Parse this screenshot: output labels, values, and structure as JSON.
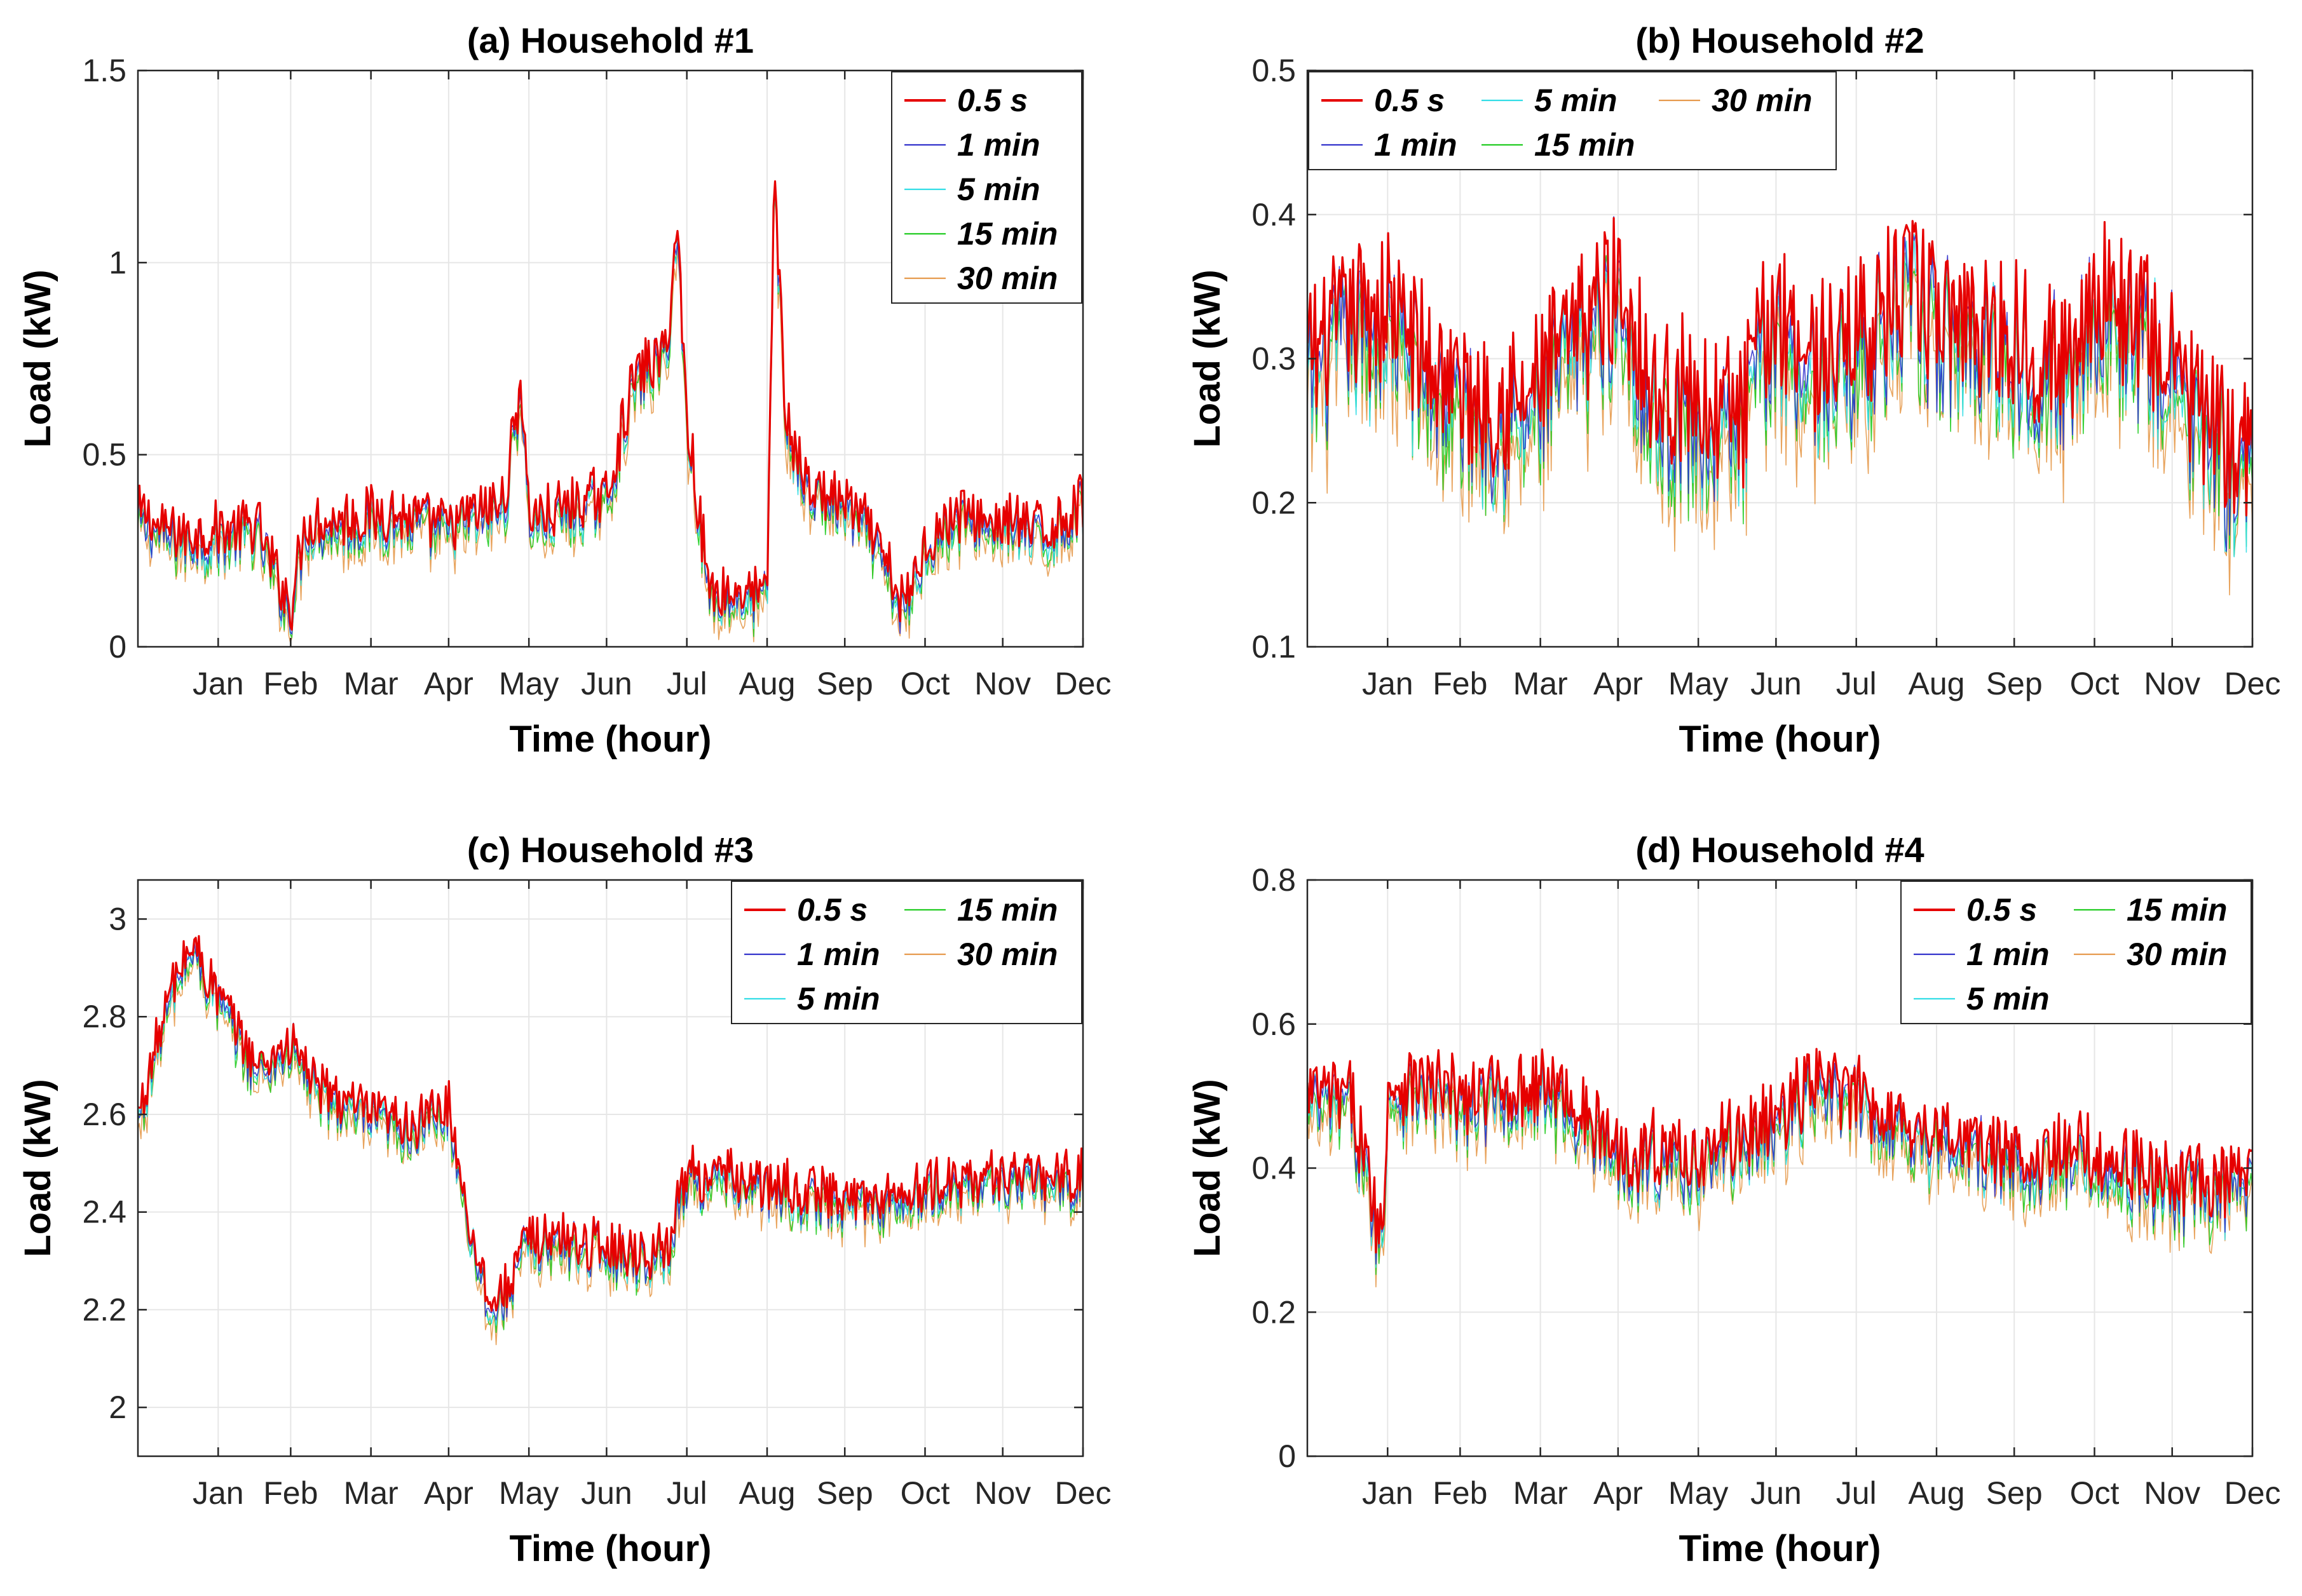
{
  "figure": {
    "series_names": [
      "0.5 s",
      "1 min",
      "5 min",
      "15 min",
      "30 min"
    ],
    "series_colors": {
      "0.5 s": "#e60000",
      "1 min": "#3333cc",
      "5 min": "#33dde6",
      "15 min": "#22cc22",
      "30 min": "#e69a4d"
    },
    "xlabel": "Time (hour)",
    "ylabel": "Load (kW)"
  },
  "chart_data": [
    {
      "type": "line",
      "title": "(a) Household #1",
      "xlabel": "Time (hour)",
      "ylabel": "Load (kW)",
      "xlim": [
        0,
        8760
      ],
      "ylim": [
        0,
        1.5
      ],
      "yticks": [
        "0",
        "0.5",
        "1",
        "1.5"
      ],
      "yticks_values": [
        0,
        0.5,
        1,
        1.5
      ],
      "xticks": [
        "Jan",
        "Feb",
        "Mar",
        "Apr",
        "May",
        "Jun",
        "Jul",
        "Aug",
        "Sep",
        "Oct",
        "Nov",
        "Dec"
      ],
      "xticks_hours": [
        744,
        1416,
        2160,
        2880,
        3624,
        4344,
        5088,
        5832,
        6552,
        7296,
        8016,
        8760
      ],
      "grid": true,
      "legend": {
        "position": "top-right",
        "columns": 1,
        "order": [
          "0.5 s",
          "1 min",
          "5 min",
          "15 min",
          "30 min"
        ]
      },
      "profile_hours": [
        0,
        300,
        744,
        1100,
        1416,
        1550,
        2160,
        2300,
        2880,
        3400,
        3550,
        3624,
        3800,
        4344,
        4600,
        4900,
        5000,
        5088,
        5300,
        5832,
        5900,
        6000,
        6200,
        6552,
        6800,
        7100,
        7296,
        7600,
        8016,
        8400,
        8760
      ],
      "profile_values": [
        0.35,
        0.3,
        0.3,
        0.32,
        0.1,
        0.33,
        0.34,
        0.35,
        0.32,
        0.38,
        0.7,
        0.35,
        0.35,
        0.4,
        0.7,
        0.78,
        1.1,
        0.6,
        0.15,
        0.14,
        1.25,
        0.6,
        0.42,
        0.38,
        0.3,
        0.1,
        0.28,
        0.35,
        0.33,
        0.3,
        0.38
      ],
      "noise": 0.07
    },
    {
      "type": "line",
      "title": "(b) Household #2",
      "xlabel": "Time (hour)",
      "ylabel": "Load (kW)",
      "xlim": [
        0,
        8760
      ],
      "ylim": [
        0.1,
        0.5
      ],
      "yticks": [
        "0.1",
        "0.2",
        "0.3",
        "0.4",
        "0.5"
      ],
      "yticks_values": [
        0.1,
        0.2,
        0.3,
        0.4,
        0.5
      ],
      "xticks": [
        "Jan",
        "Feb",
        "Mar",
        "Apr",
        "May",
        "Jun",
        "Jul",
        "Aug",
        "Sep",
        "Oct",
        "Nov",
        "Dec"
      ],
      "xticks_hours": [
        744,
        1416,
        2160,
        2880,
        3624,
        4344,
        5088,
        5832,
        6552,
        7296,
        8016,
        8760
      ],
      "grid": true,
      "legend": {
        "position": "top-left",
        "columns": 3,
        "order": [
          "0.5 s",
          "1 min",
          "5 min",
          "15 min",
          "30 min"
        ]
      },
      "profile_hours": [
        0,
        400,
        744,
        1100,
        1416,
        2000,
        2600,
        2880,
        3200,
        3624,
        4000,
        4344,
        4700,
        5088,
        5600,
        5832,
        6200,
        6552,
        7000,
        7296,
        7700,
        8016,
        8400,
        8760
      ],
      "profile_values": [
        0.3,
        0.33,
        0.34,
        0.3,
        0.28,
        0.27,
        0.33,
        0.36,
        0.28,
        0.27,
        0.26,
        0.34,
        0.3,
        0.32,
        0.35,
        0.33,
        0.33,
        0.32,
        0.3,
        0.35,
        0.33,
        0.3,
        0.25,
        0.23
      ],
      "noise": 0.05
    },
    {
      "type": "line",
      "title": "(c) Household #3",
      "xlabel": "Time (hour)",
      "ylabel": "Load (kW)",
      "xlim": [
        0,
        8760
      ],
      "ylim": [
        1.9,
        3.08
      ],
      "yticks": [
        "2",
        "2.2",
        "2.4",
        "2.6",
        "2.8",
        "3"
      ],
      "yticks_values": [
        2,
        2.2,
        2.4,
        2.6,
        2.8,
        3
      ],
      "xticks": [
        "Jan",
        "Feb",
        "Mar",
        "Apr",
        "May",
        "Jun",
        "Jul",
        "Aug",
        "Sep",
        "Oct",
        "Nov",
        "Dec"
      ],
      "xticks_hours": [
        744,
        1416,
        2160,
        2880,
        3624,
        4344,
        5088,
        5832,
        6552,
        7296,
        8016,
        8760
      ],
      "grid": true,
      "legend": {
        "position": "top-right",
        "columns": 2,
        "order": [
          "0.5 s",
          "1 min",
          "5 min",
          "15 min",
          "30 min"
        ]
      },
      "profile_hours": [
        0,
        300,
        500,
        744,
        1100,
        1416,
        1700,
        2160,
        2600,
        2880,
        3100,
        3300,
        3624,
        3900,
        4344,
        4700,
        4900,
        5088,
        5600,
        6000,
        6552,
        7000,
        7296,
        7700,
        8016,
        8400,
        8760
      ],
      "profile_values": [
        2.6,
        2.85,
        2.95,
        2.85,
        2.7,
        2.75,
        2.65,
        2.6,
        2.58,
        2.62,
        2.35,
        2.2,
        2.35,
        2.35,
        2.33,
        2.32,
        2.33,
        2.48,
        2.47,
        2.45,
        2.43,
        2.43,
        2.45,
        2.47,
        2.48,
        2.47,
        2.48
      ],
      "noise": 0.05
    },
    {
      "type": "line",
      "title": "(d) Household #4",
      "xlabel": "Time (hour)",
      "ylabel": "Load (kW)",
      "xlim": [
        0,
        8760
      ],
      "ylim": [
        0,
        0.8
      ],
      "yticks": [
        "0",
        "0.2",
        "0.4",
        "0.6",
        "0.8"
      ],
      "yticks_values": [
        0,
        0.2,
        0.4,
        0.6,
        0.8
      ],
      "xticks": [
        "Jan",
        "Feb",
        "Mar",
        "Apr",
        "May",
        "Jun",
        "Jul",
        "Aug",
        "Sep",
        "Oct",
        "Nov",
        "Dec"
      ],
      "xticks_hours": [
        744,
        1416,
        2160,
        2880,
        3624,
        4344,
        5088,
        5832,
        6552,
        7296,
        8016,
        8760
      ],
      "grid": true,
      "legend": {
        "position": "top-right",
        "columns": 2,
        "order": [
          "0.5 s",
          "1 min",
          "5 min",
          "15 min",
          "30 min"
        ]
      },
      "profile_hours": [
        0,
        400,
        700,
        744,
        1000,
        1416,
        2160,
        2400,
        2880,
        3624,
        4344,
        4700,
        5088,
        5832,
        6552,
        7296,
        8016,
        8760
      ],
      "profile_values": [
        0.5,
        0.5,
        0.3,
        0.52,
        0.52,
        0.5,
        0.52,
        0.5,
        0.43,
        0.42,
        0.47,
        0.52,
        0.5,
        0.45,
        0.42,
        0.42,
        0.38,
        0.38
      ],
      "noise": 0.05
    }
  ]
}
